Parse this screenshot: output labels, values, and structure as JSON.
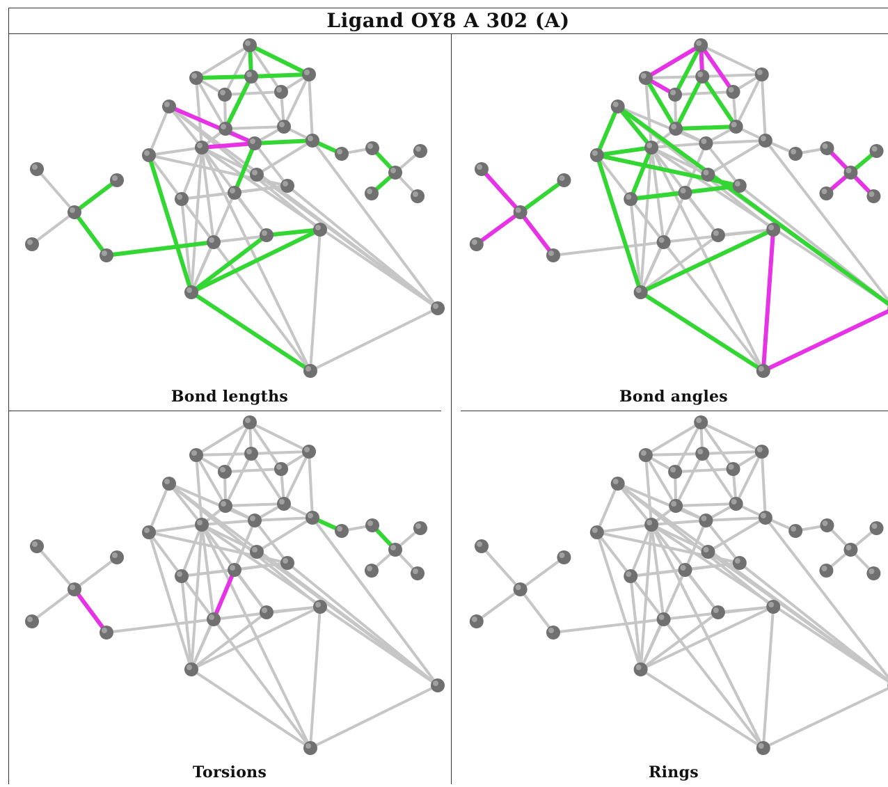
{
  "title": "Ligand OY8 A 302 (A)",
  "colors": {
    "atom": "#707070",
    "atom_highlight": "#a0a0a0",
    "bond_default": "#c6c6c6",
    "bond_ok": "#33d633",
    "bond_outlier": "#e633e6",
    "border": "#333333"
  },
  "panels": [
    {
      "id": "bond-lengths",
      "caption": "Bond lengths"
    },
    {
      "id": "bond-angles",
      "caption": "Bond angles"
    },
    {
      "id": "torsions",
      "caption": "Torsions"
    },
    {
      "id": "rings",
      "caption": "Rings"
    }
  ]
}
